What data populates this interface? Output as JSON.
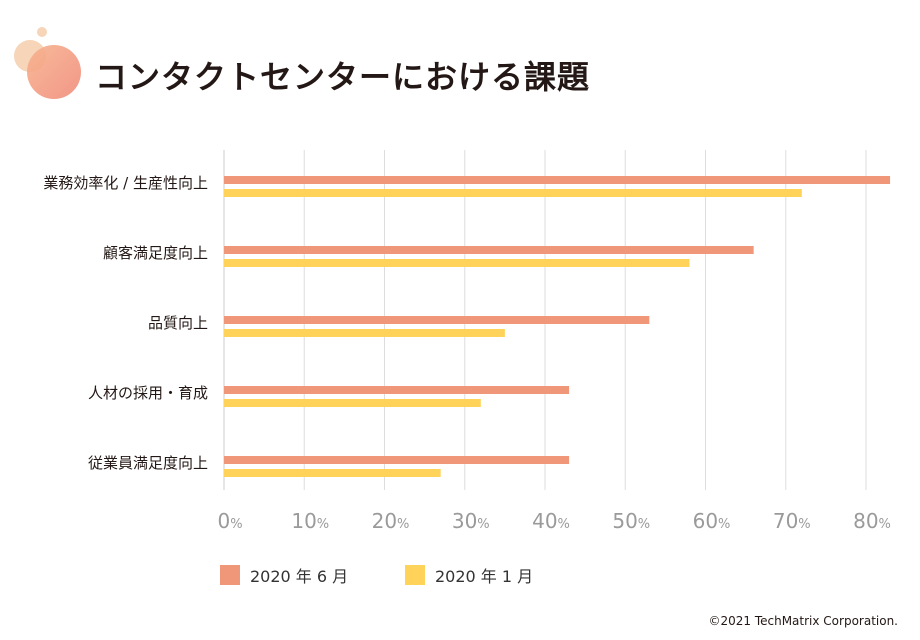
{
  "header": {
    "title": "コンタクトセンターにおける課題"
  },
  "colors": {
    "series1": "#F0977A",
    "series2": "#FFD35A",
    "grid": "#dddddd",
    "deco1": "#F6D5B8",
    "deco2": "#F08A7A"
  },
  "chart_data": {
    "type": "bar",
    "orientation": "horizontal",
    "title": "コンタクトセンターにおける課題",
    "categories": [
      "業務効率化 / 生産性向上",
      "顧客満足度向上",
      "品質向上",
      "人材の採用・育成",
      "従業員満足度向上"
    ],
    "series": [
      {
        "name": "2020 年 6 月",
        "values": [
          83,
          66,
          53,
          43,
          43
        ]
      },
      {
        "name": "2020 年 1 月",
        "values": [
          72,
          58,
          35,
          32,
          27
        ]
      }
    ],
    "xlim": [
      0,
      80
    ],
    "xticks": [
      0,
      10,
      20,
      30,
      40,
      50,
      60,
      70,
      80
    ],
    "tick_unit": "%",
    "legend_position": "bottom-left",
    "grid": true
  },
  "legend": [
    {
      "label": "2020 年 6 月"
    },
    {
      "label": "2020 年 1 月"
    }
  ],
  "footer": {
    "copyright": "©2021 TechMatrix Corporation."
  }
}
